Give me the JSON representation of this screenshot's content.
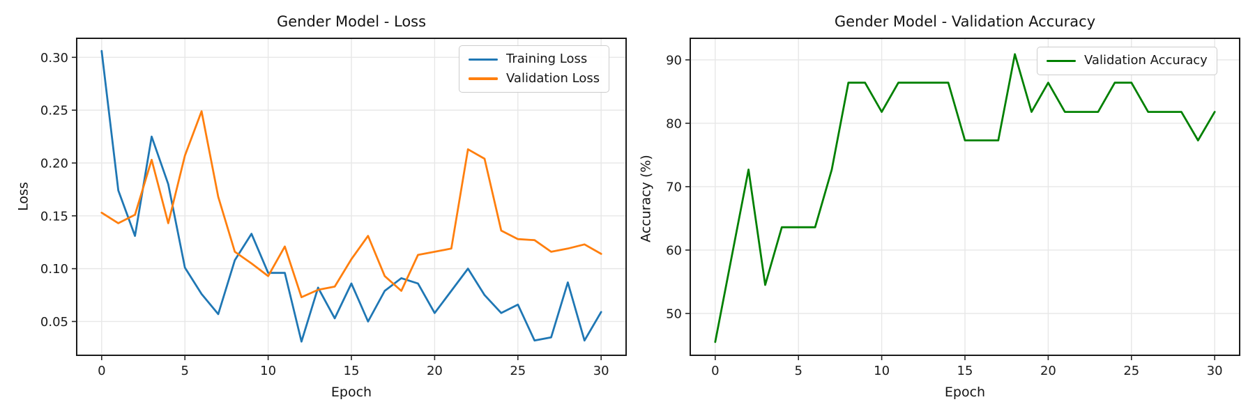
{
  "figure": {
    "background": "#ffffff"
  },
  "style": {
    "grid_color": "#e7e7e7",
    "spine_color": "#1a1a1a",
    "tick_color": "#262626",
    "text_color": "#1a1a1a",
    "legend_border": "#cccccc"
  },
  "chart_data": [
    {
      "type": "line",
      "title": "Gender Model - Loss",
      "xlabel": "Epoch",
      "ylabel": "Loss",
      "x": [
        0,
        1,
        2,
        3,
        4,
        5,
        6,
        7,
        8,
        9,
        10,
        11,
        12,
        13,
        14,
        15,
        16,
        17,
        18,
        19,
        20,
        21,
        22,
        23,
        24,
        25,
        26,
        27,
        28,
        29,
        30
      ],
      "series": [
        {
          "name": "Training Loss",
          "color": "#1f77b4",
          "values": [
            0.306,
            0.174,
            0.131,
            0.225,
            0.18,
            0.101,
            0.076,
            0.057,
            0.108,
            0.133,
            0.096,
            0.096,
            0.031,
            0.082,
            0.053,
            0.086,
            0.05,
            0.079,
            0.091,
            0.086,
            0.058,
            0.079,
            0.1,
            0.075,
            0.058,
            0.066,
            0.032,
            0.035,
            0.087,
            0.032,
            0.059
          ]
        },
        {
          "name": "Validation Loss",
          "color": "#ff7f0e",
          "values": [
            0.153,
            0.143,
            0.151,
            0.203,
            0.143,
            0.207,
            0.249,
            0.168,
            0.116,
            0.105,
            0.093,
            0.121,
            0.073,
            0.08,
            0.083,
            0.109,
            0.131,
            0.093,
            0.079,
            0.113,
            0.116,
            0.119,
            0.213,
            0.204,
            0.136,
            0.128,
            0.127,
            0.116,
            0.119,
            0.123,
            0.114
          ]
        }
      ],
      "xlim": [
        -1.5,
        31.5
      ],
      "ylim": [
        0.018,
        0.318
      ],
      "xticks": [
        0,
        5,
        10,
        15,
        20,
        25,
        30
      ],
      "xtick_labels": [
        "0",
        "5",
        "10",
        "15",
        "20",
        "25",
        "30"
      ],
      "yticks": [
        0.05,
        0.1,
        0.15,
        0.2,
        0.25,
        0.3
      ],
      "ytick_labels": [
        "0.05",
        "0.10",
        "0.15",
        "0.20",
        "0.25",
        "0.30"
      ],
      "grid": true,
      "legend_position": "upper right",
      "legend": [
        "Training Loss",
        "Validation Loss"
      ]
    },
    {
      "type": "line",
      "title": "Gender Model - Validation Accuracy",
      "xlabel": "Epoch",
      "ylabel": "Accuracy (%)",
      "x": [
        0,
        1,
        2,
        3,
        4,
        5,
        6,
        7,
        8,
        9,
        10,
        11,
        12,
        13,
        14,
        15,
        16,
        17,
        18,
        19,
        20,
        21,
        22,
        23,
        24,
        25,
        26,
        27,
        28,
        29,
        30
      ],
      "series": [
        {
          "name": "Validation Accuracy",
          "color": "#008000",
          "values": [
            45.5,
            59.1,
            72.7,
            54.5,
            63.6,
            63.6,
            63.6,
            72.7,
            86.4,
            86.4,
            81.8,
            86.4,
            86.4,
            86.4,
            86.4,
            77.3,
            77.3,
            77.3,
            90.9,
            81.8,
            86.4,
            81.8,
            81.8,
            81.8,
            86.4,
            86.4,
            81.8,
            81.8,
            81.8,
            77.3,
            81.8
          ]
        }
      ],
      "xlim": [
        -1.5,
        31.5
      ],
      "ylim": [
        43.4,
        93.4
      ],
      "xticks": [
        0,
        5,
        10,
        15,
        20,
        25,
        30
      ],
      "xtick_labels": [
        "0",
        "5",
        "10",
        "15",
        "20",
        "25",
        "30"
      ],
      "yticks": [
        50,
        60,
        70,
        80,
        90
      ],
      "ytick_labels": [
        "50",
        "60",
        "70",
        "80",
        "90"
      ],
      "grid": true,
      "legend_position": "upper right",
      "legend": [
        "Validation Accuracy"
      ]
    }
  ]
}
